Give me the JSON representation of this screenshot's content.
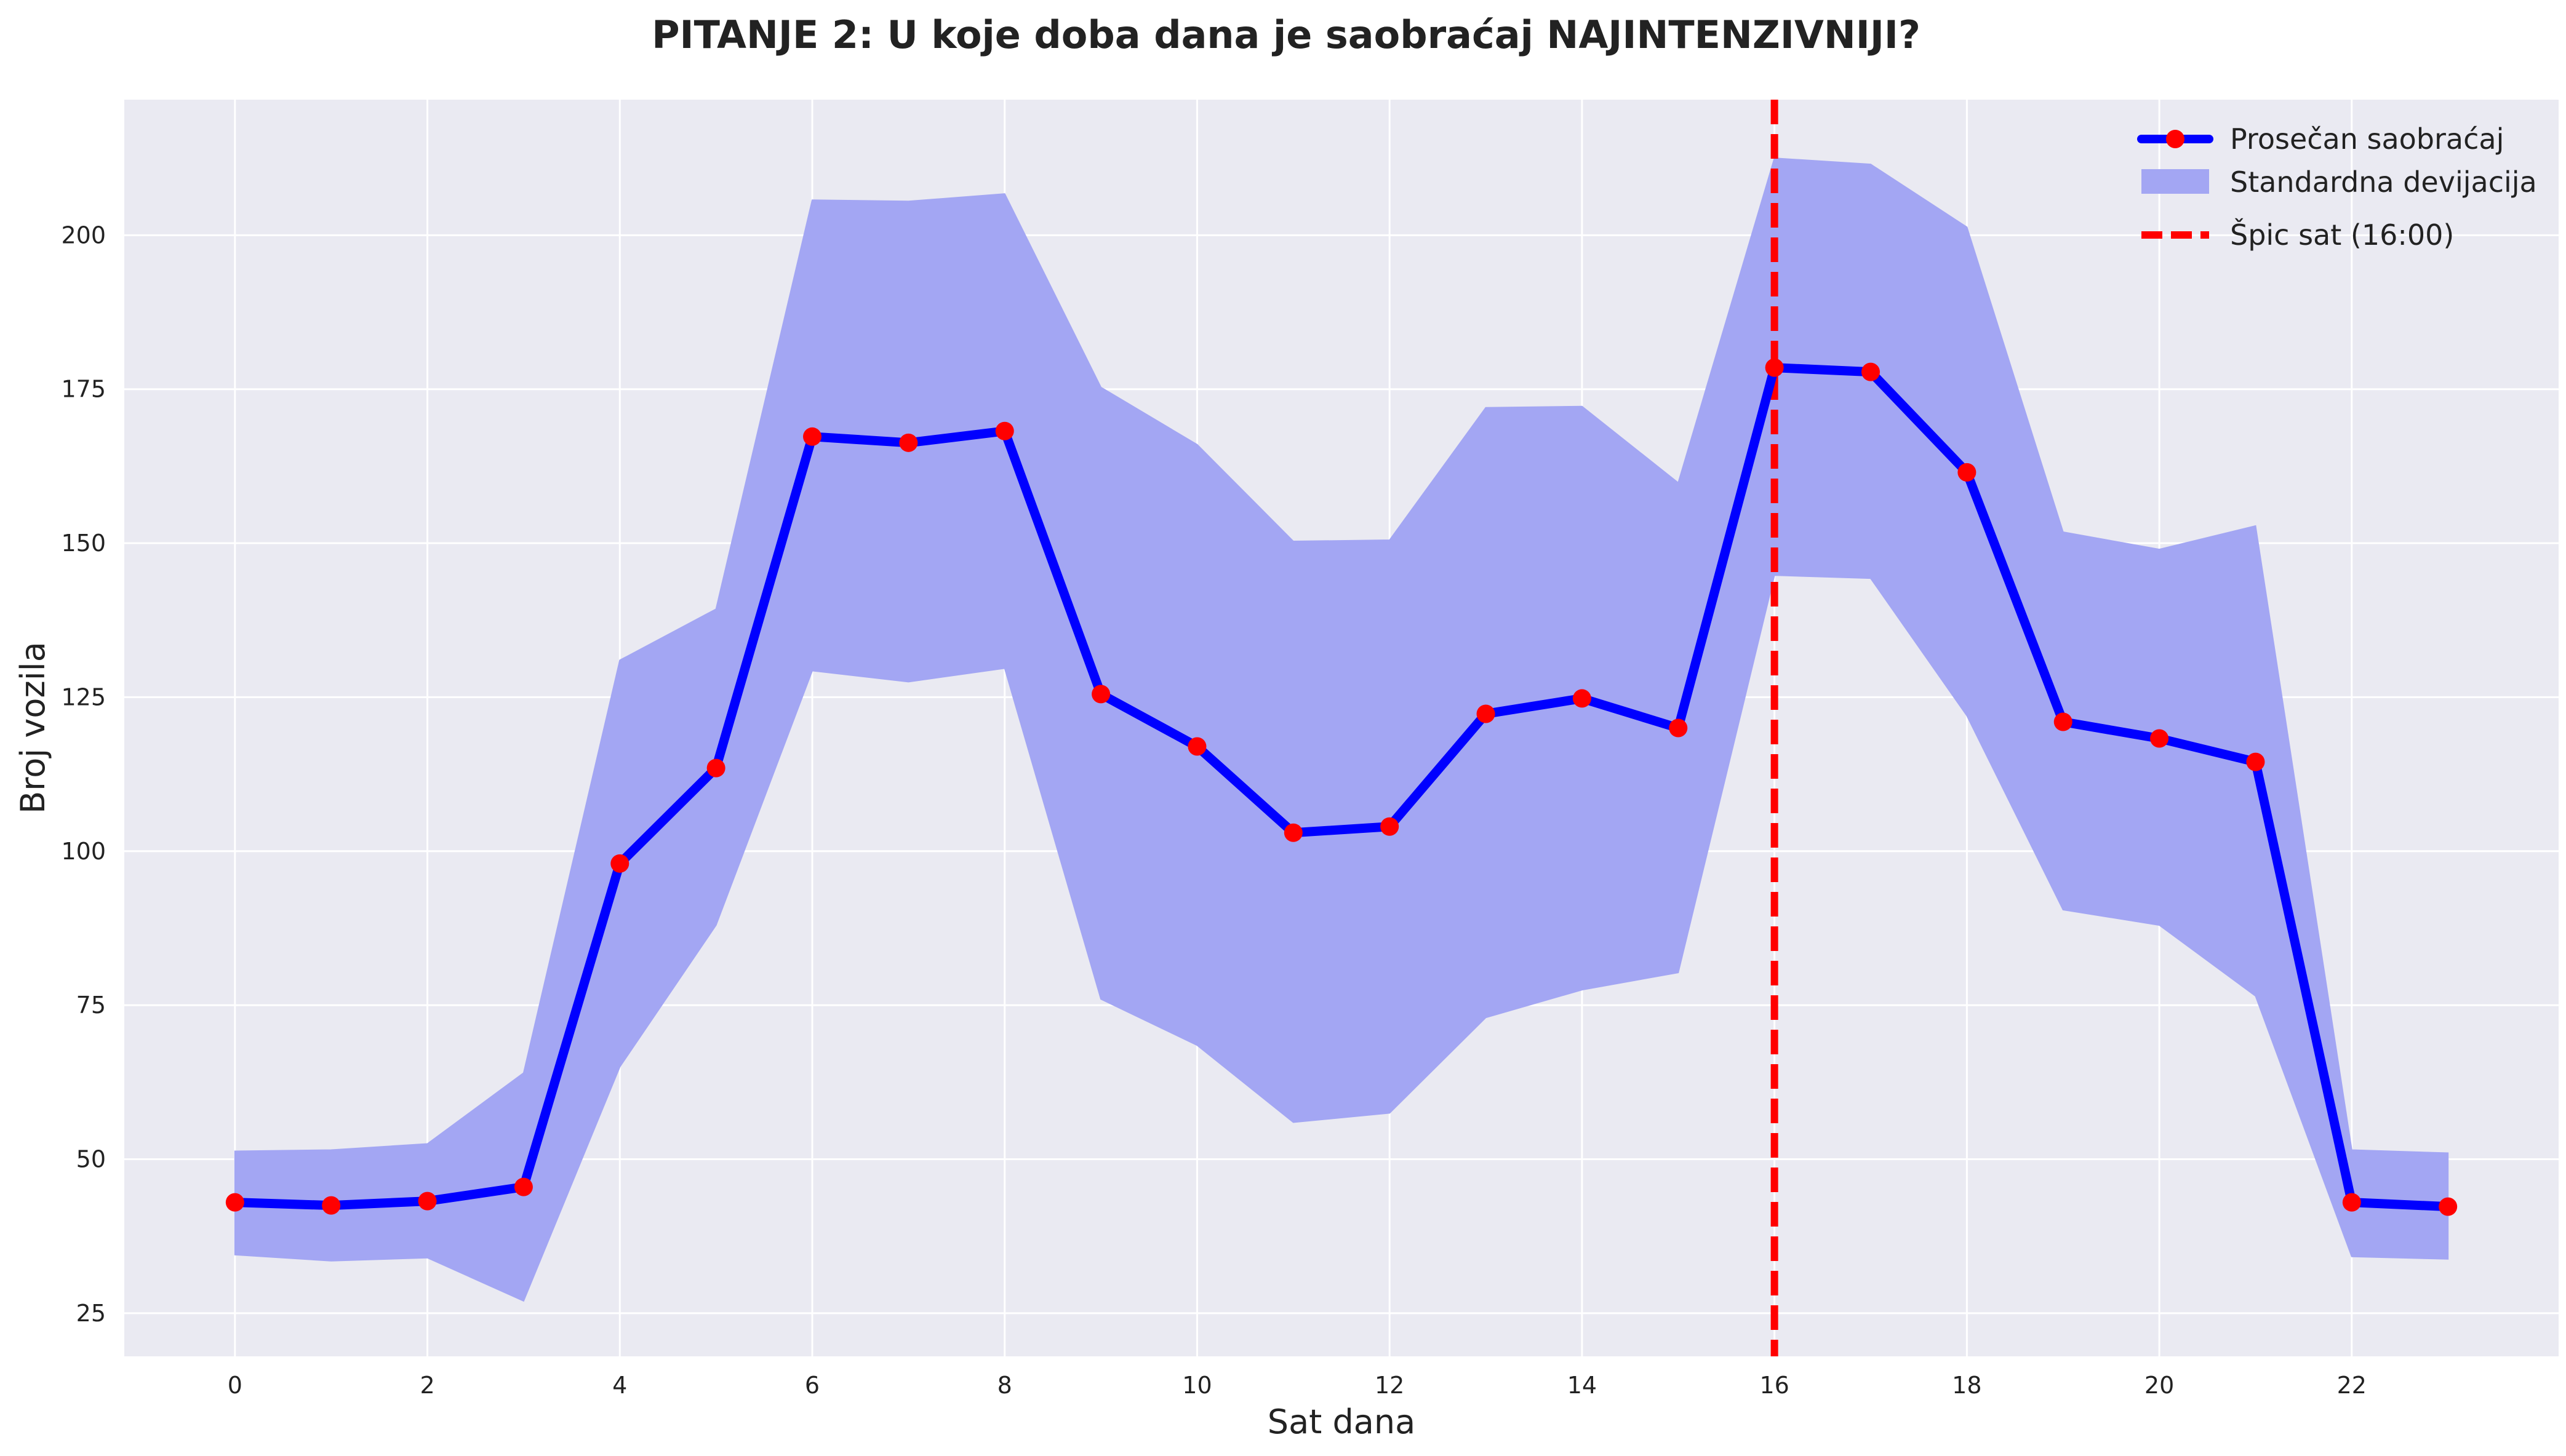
{
  "chart_data": {
    "type": "line",
    "title": "PITANJE 2: U koje doba dana je saobraćaj NAJINTENZIVNIJI?",
    "xlabel": "Sat dana",
    "ylabel": "Broj vozila",
    "xlim": [
      -1.15,
      24.15
    ],
    "ylim": [
      18,
      222
    ],
    "xticks": [
      0,
      2,
      4,
      6,
      8,
      10,
      12,
      14,
      16,
      18,
      20,
      22
    ],
    "yticks": [
      25,
      50,
      75,
      100,
      125,
      150,
      175,
      200
    ],
    "grid": true,
    "legend_position": "top-right",
    "x": [
      0,
      1,
      2,
      3,
      4,
      5,
      6,
      7,
      8,
      9,
      10,
      11,
      12,
      13,
      14,
      15,
      16,
      17,
      18,
      19,
      20,
      21,
      22,
      23
    ],
    "series": [
      {
        "name": "Prosečan saobraćaj",
        "values": [
          43,
          42.5,
          43.2,
          45.5,
          98,
          113.5,
          167.3,
          166.3,
          168.2,
          125.5,
          117,
          103,
          104,
          122.3,
          124.8,
          120,
          178.5,
          177.8,
          161.5,
          121,
          118.3,
          114.5,
          43,
          42.3
        ],
        "color": "#0000ff",
        "marker_color": "#ff0000"
      }
    ],
    "band": {
      "name": "Standardna devijacija",
      "upper": [
        51.3,
        51.5,
        52.5,
        64,
        131,
        139.3,
        205.7,
        205.5,
        206.7,
        175.3,
        166,
        150.3,
        150.5,
        172,
        172.2,
        159.8,
        212.5,
        211.5,
        201.3,
        151.8,
        149,
        152.8,
        51.5,
        51
      ],
      "lower": [
        34.5,
        33.5,
        34,
        27,
        65,
        88,
        129.3,
        127.5,
        129.7,
        76,
        68.5,
        56,
        57.5,
        73,
        77.5,
        80.3,
        144.8,
        144.3,
        122,
        90.5,
        88,
        76.5,
        34.2,
        33.8
      ],
      "color": "#a3a6f3"
    },
    "vline": {
      "name": "Špic sat (16:00)",
      "x": 16,
      "color": "#ff0000"
    }
  }
}
